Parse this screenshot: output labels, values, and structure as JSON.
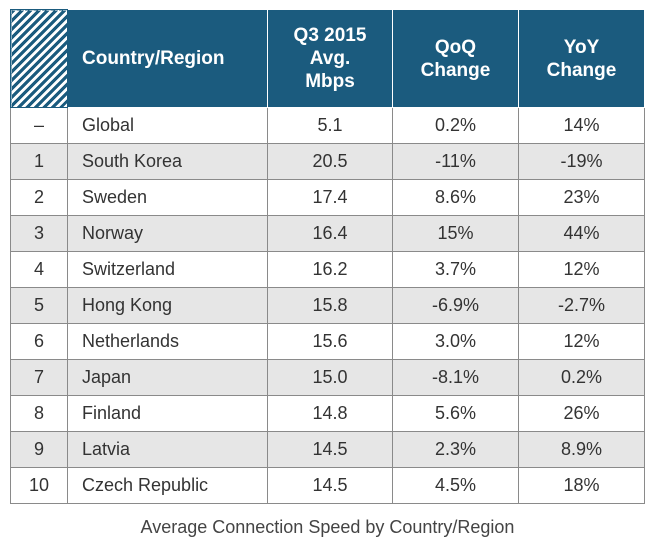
{
  "chart_data": {
    "type": "table",
    "title": "Average Connection Speed by Country/Region",
    "columns": [
      "",
      "Country/Region",
      "Q3 2015 Avg. Mbps",
      "QoQ Change",
      "YoY Change"
    ],
    "header_lines": {
      "country": "Country/Region",
      "speed": [
        "Q3 2015",
        "Avg.",
        "Mbps"
      ],
      "qoq": [
        "QoQ",
        "Change"
      ],
      "yoy": [
        "YoY",
        "Change"
      ]
    },
    "rows": [
      {
        "rank": "–",
        "country": "Global",
        "mbps": "5.1",
        "qoq": "0.2%",
        "yoy": "14%"
      },
      {
        "rank": "1",
        "country": "South Korea",
        "mbps": "20.5",
        "qoq": "-11%",
        "yoy": "-19%"
      },
      {
        "rank": "2",
        "country": "Sweden",
        "mbps": "17.4",
        "qoq": "8.6%",
        "yoy": "23%"
      },
      {
        "rank": "3",
        "country": "Norway",
        "mbps": "16.4",
        "qoq": "15%",
        "yoy": "44%"
      },
      {
        "rank": "4",
        "country": "Switzerland",
        "mbps": "16.2",
        "qoq": "3.7%",
        "yoy": "12%"
      },
      {
        "rank": "5",
        "country": "Hong Kong",
        "mbps": "15.8",
        "qoq": "-6.9%",
        "yoy": "-2.7%"
      },
      {
        "rank": "6",
        "country": "Netherlands",
        "mbps": "15.6",
        "qoq": "3.0%",
        "yoy": "12%"
      },
      {
        "rank": "7",
        "country": "Japan",
        "mbps": "15.0",
        "qoq": "-8.1%",
        "yoy": "0.2%"
      },
      {
        "rank": "8",
        "country": "Finland",
        "mbps": "14.8",
        "qoq": "5.6%",
        "yoy": "26%"
      },
      {
        "rank": "9",
        "country": "Latvia",
        "mbps": "14.5",
        "qoq": "2.3%",
        "yoy": "8.9%"
      },
      {
        "rank": "10",
        "country": "Czech Republic",
        "mbps": "14.5",
        "qoq": "4.5%",
        "yoy": "18%"
      }
    ],
    "colors": {
      "header": "#1b5b7e",
      "alt_row": "#e6e6e6"
    }
  }
}
